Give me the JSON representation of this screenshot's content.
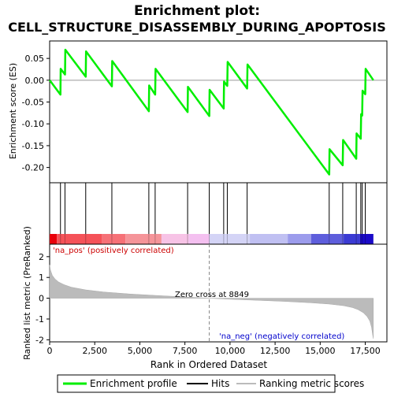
{
  "chart_data": {
    "type": "line",
    "title_line1": "Enrichment plot:",
    "title_line2": "CELL_STRUCTURE_DISASSEMBLY_DURING_APOPTOSIS",
    "xlabel": "Rank in Ordered Dataset",
    "ylabel_top": "Enrichment score (ES)",
    "ylabel_bottom": "Ranked list metric (PreRanked)",
    "x_range": [
      0,
      18700
    ],
    "x_ticks": [
      0,
      2500,
      5000,
      7500,
      10000,
      12500,
      15000,
      17500
    ],
    "x_tick_labels": [
      "0",
      "2,500",
      "5,000",
      "7,500",
      "10,000",
      "12,500",
      "15,000",
      "17,500"
    ],
    "es_range": [
      -0.235,
      0.09
    ],
    "es_ticks": [
      0.05,
      0.0,
      -0.05,
      -0.1,
      -0.15,
      -0.2
    ],
    "es_tick_labels": [
      "0.05",
      "0.00",
      "-0.05",
      "-0.10",
      "-0.15",
      "-0.20"
    ],
    "metric_range": [
      -2.1,
      2.6
    ],
    "metric_ticks": [
      2,
      1,
      0,
      -1,
      -2
    ],
    "metric_tick_labels": [
      "2",
      "1",
      "0",
      "-1",
      "-2"
    ],
    "series_color": "#00ee00",
    "es_curve": [
      [
        0,
        0.0
      ],
      [
        600,
        -0.033
      ],
      [
        610,
        0.026
      ],
      [
        850,
        0.013
      ],
      [
        870,
        0.07
      ],
      [
        2000,
        0.008
      ],
      [
        2020,
        0.066
      ],
      [
        3450,
        -0.014
      ],
      [
        3470,
        0.044
      ],
      [
        5500,
        -0.071
      ],
      [
        5520,
        -0.012
      ],
      [
        5850,
        -0.033
      ],
      [
        5870,
        0.026
      ],
      [
        7650,
        -0.073
      ],
      [
        7670,
        -0.015
      ],
      [
        8850,
        -0.082
      ],
      [
        8870,
        -0.022
      ],
      [
        9650,
        -0.065
      ],
      [
        9670,
        -0.003
      ],
      [
        9850,
        -0.013
      ],
      [
        9870,
        0.042
      ],
      [
        10950,
        -0.019
      ],
      [
        10970,
        0.036
      ],
      [
        15500,
        -0.216
      ],
      [
        15520,
        -0.158
      ],
      [
        16250,
        -0.195
      ],
      [
        16270,
        -0.137
      ],
      [
        17000,
        -0.18
      ],
      [
        17020,
        -0.122
      ],
      [
        17250,
        -0.134
      ],
      [
        17270,
        -0.078
      ],
      [
        17330,
        -0.081
      ],
      [
        17350,
        -0.024
      ],
      [
        17500,
        -0.032
      ],
      [
        17520,
        0.026
      ],
      [
        17950,
        0.0
      ]
    ],
    "hits": [
      600,
      850,
      2000,
      3450,
      5500,
      5850,
      7650,
      8850,
      9650,
      9850,
      10950,
      15500,
      16250,
      17000,
      17250,
      17330,
      17500
    ],
    "color_bar": [
      {
        "from": 0,
        "to": 400,
        "color": "#e8000a"
      },
      {
        "from": 400,
        "to": 2900,
        "color": "#f55258"
      },
      {
        "from": 2900,
        "to": 4200,
        "color": "#f67177"
      },
      {
        "from": 4200,
        "to": 6200,
        "color": "#f59499"
      },
      {
        "from": 6200,
        "to": 7700,
        "color": "#f7c3e6"
      },
      {
        "from": 7700,
        "to": 8849,
        "color": "#f4c0f0"
      },
      {
        "from": 8849,
        "to": 11100,
        "color": "#d4d4f6"
      },
      {
        "from": 11100,
        "to": 13200,
        "color": "#c0c0f2"
      },
      {
        "from": 13200,
        "to": 14500,
        "color": "#9c9cec"
      },
      {
        "from": 14500,
        "to": 16300,
        "color": "#5e5edc"
      },
      {
        "from": 16300,
        "to": 17200,
        "color": "#3b3bd3"
      },
      {
        "from": 17200,
        "to": 17950,
        "color": "#1a0ac8"
      }
    ],
    "metric_curve": [
      [
        0,
        1.6
      ],
      [
        50,
        1.35
      ],
      [
        150,
        1.1
      ],
      [
        300,
        0.92
      ],
      [
        500,
        0.78
      ],
      [
        800,
        0.65
      ],
      [
        1200,
        0.53
      ],
      [
        2000,
        0.4
      ],
      [
        3000,
        0.3
      ],
      [
        4500,
        0.2
      ],
      [
        6000,
        0.13
      ],
      [
        7500,
        0.06
      ],
      [
        8849,
        0.0
      ],
      [
        10000,
        -0.05
      ],
      [
        11500,
        -0.1
      ],
      [
        13000,
        -0.15
      ],
      [
        14500,
        -0.22
      ],
      [
        15500,
        -0.28
      ],
      [
        16300,
        -0.36
      ],
      [
        16800,
        -0.45
      ],
      [
        17100,
        -0.55
      ],
      [
        17400,
        -0.7
      ],
      [
        17600,
        -0.88
      ],
      [
        17750,
        -1.1
      ],
      [
        17850,
        -1.4
      ],
      [
        17920,
        -1.8
      ],
      [
        17950,
        -1.95
      ]
    ],
    "zero_cross_x": 8849,
    "annotations": {
      "pos_label": "'na_pos' (positively correlated)",
      "neg_label": "'na_neg' (negatively correlated)",
      "zero_label": "Zero cross at 8849"
    },
    "legend": {
      "position": "bottom",
      "items": [
        {
          "label": "Enrichment profile",
          "color": "#00ee00"
        },
        {
          "label": "Hits",
          "color": "#000000"
        },
        {
          "label": "Ranking metric scores",
          "color": "#bbbbbb"
        }
      ]
    },
    "colors": {
      "pos_text": "#cc0000",
      "neg_text": "#0000cc",
      "metric_fill": "#bbbbbb"
    }
  }
}
